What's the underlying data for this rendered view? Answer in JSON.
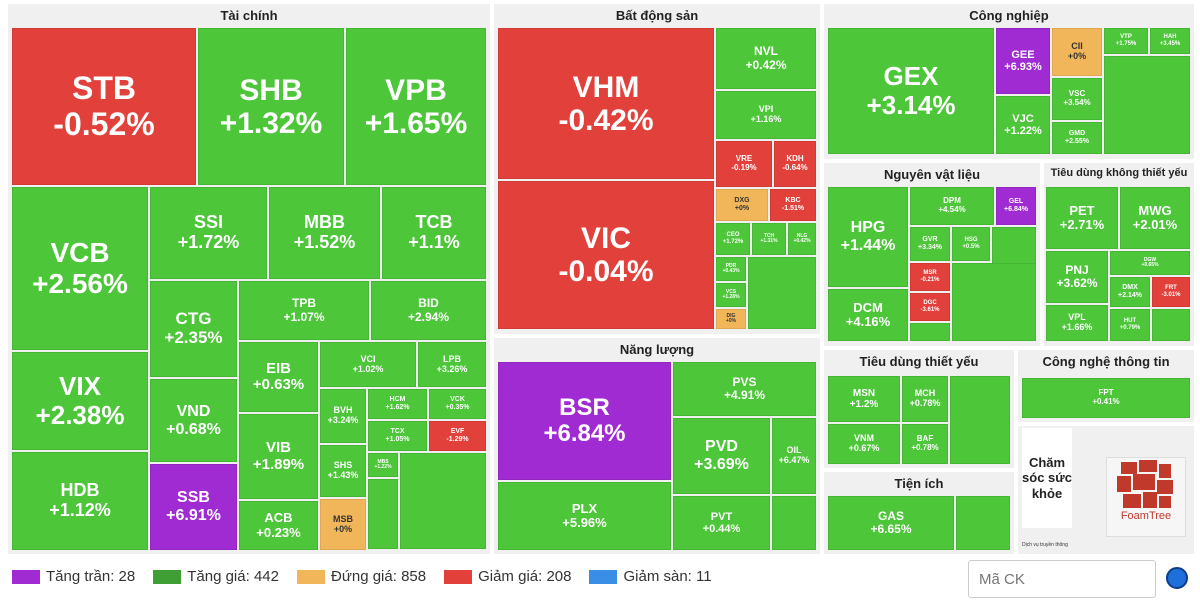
{
  "sectors": {
    "finance": "Tài chính",
    "realestate": "Bất động sản",
    "industry": "Công nghiệp",
    "materials": "Nguyên vật liệu",
    "consumer_disc": "Tiêu dùng không thiết yếu",
    "energy": "Năng lượng",
    "staples": "Tiêu dùng thiết yếu",
    "it": "Công nghệ thông tin",
    "utilities": "Tiện ích",
    "health": "Chăm sóc sức khỏe"
  },
  "tiles": {
    "STB": {
      "s": "STB",
      "v": "-0.52%"
    },
    "SHB": {
      "s": "SHB",
      "v": "+1.32%"
    },
    "VPB": {
      "s": "VPB",
      "v": "+1.65%"
    },
    "VCB": {
      "s": "VCB",
      "v": "+2.56%"
    },
    "SSI": {
      "s": "SSI",
      "v": "+1.72%"
    },
    "MBB": {
      "s": "MBB",
      "v": "+1.52%"
    },
    "TCB": {
      "s": "TCB",
      "v": "+1.1%"
    },
    "CTG": {
      "s": "CTG",
      "v": "+2.35%"
    },
    "TPB": {
      "s": "TPB",
      "v": "+1.07%"
    },
    "BID": {
      "s": "BID",
      "v": "+2.94%"
    },
    "VIX": {
      "s": "VIX",
      "v": "+2.38%"
    },
    "VND": {
      "s": "VND",
      "v": "+0.68%"
    },
    "EIB": {
      "s": "EIB",
      "v": "+0.63%"
    },
    "VCI": {
      "s": "VCI",
      "v": "+1.02%"
    },
    "LPB": {
      "s": "LPB",
      "v": "+3.26%"
    },
    "BVH": {
      "s": "BVH",
      "v": "+3.24%"
    },
    "HCM": {
      "s": "HCM",
      "v": "+1.62%"
    },
    "VCK": {
      "s": "VCK",
      "v": "+0.35%"
    },
    "TCX": {
      "s": "TCX",
      "v": "+1.05%"
    },
    "EVF": {
      "s": "EVF",
      "v": "-1.29%"
    },
    "VIB": {
      "s": "VIB",
      "v": "+1.89%"
    },
    "SHS": {
      "s": "SHS",
      "v": "+1.43%"
    },
    "MBS": {
      "s": "MBS",
      "v": "+1.22%"
    },
    "HDB": {
      "s": "HDB",
      "v": "+1.12%"
    },
    "SSB": {
      "s": "SSB",
      "v": "+6.91%"
    },
    "ACB": {
      "s": "ACB",
      "v": "+0.23%"
    },
    "MSB": {
      "s": "MSB",
      "v": "+0%"
    },
    "VHM": {
      "s": "VHM",
      "v": "-0.42%"
    },
    "VIC": {
      "s": "VIC",
      "v": "-0.04%"
    },
    "NVL": {
      "s": "NVL",
      "v": "+0.42%"
    },
    "VPI": {
      "s": "VPI",
      "v": "+1.16%"
    },
    "VRE": {
      "s": "VRE",
      "v": "-0.19%"
    },
    "KDH": {
      "s": "KDH",
      "v": "-0.64%"
    },
    "DXG": {
      "s": "DXG",
      "v": "+0%"
    },
    "KBC": {
      "s": "KBC",
      "v": "-1.51%"
    },
    "CEO": {
      "s": "CEO",
      "v": "+1.72%"
    },
    "TCH": {
      "s": "TCH",
      "v": "+1.31%"
    },
    "NLG": {
      "s": "NLG",
      "v": "+0.42%"
    },
    "PDR": {
      "s": "PDR",
      "v": "+0.43%"
    },
    "VCS": {
      "s": "VCS",
      "v": "+1.28%"
    },
    "DIG": {
      "s": "DIG",
      "v": "+0%"
    },
    "GEX": {
      "s": "GEX",
      "v": "+3.14%"
    },
    "GEE": {
      "s": "GEE",
      "v": "+6.93%"
    },
    "CII": {
      "s": "CII",
      "v": "+0%"
    },
    "VJC": {
      "s": "VJC",
      "v": "+1.22%"
    },
    "VSC": {
      "s": "VSC",
      "v": "+3.54%"
    },
    "GMD": {
      "s": "GMD",
      "v": "+2.55%"
    },
    "VTP": {
      "s": "VTP",
      "v": "+1.75%"
    },
    "HAH": {
      "s": "HAH",
      "v": "+3.45%"
    },
    "HPG": {
      "s": "HPG",
      "v": "+1.44%"
    },
    "DPM": {
      "s": "DPM",
      "v": "+4.54%"
    },
    "GEL": {
      "s": "GEL",
      "v": "+6.84%"
    },
    "GVR": {
      "s": "GVR",
      "v": "+3.34%"
    },
    "HSG": {
      "s": "HSG",
      "v": "+0.5%"
    },
    "MSR": {
      "s": "MSR",
      "v": "-0.21%"
    },
    "DCM": {
      "s": "DCM",
      "v": "+4.16%"
    },
    "DGC": {
      "s": "DGC",
      "v": "-3.61%"
    },
    "PET": {
      "s": "PET",
      "v": "+2.71%"
    },
    "MWG": {
      "s": "MWG",
      "v": "+2.01%"
    },
    "PNJ": {
      "s": "PNJ",
      "v": "+3.62%"
    },
    "DGW": {
      "s": "DGW",
      "v": "+0.65%"
    },
    "DMX": {
      "s": "DMX",
      "v": "+2.14%"
    },
    "FRT": {
      "s": "FRT",
      "v": "-3.01%"
    },
    "VPL": {
      "s": "VPL",
      "v": "+1.66%"
    },
    "HUT": {
      "s": "HUT",
      "v": "+0.79%"
    },
    "BSR": {
      "s": "BSR",
      "v": "+6.84%"
    },
    "PVS": {
      "s": "PVS",
      "v": "+4.91%"
    },
    "PVD": {
      "s": "PVD",
      "v": "+3.69%"
    },
    "OIL": {
      "s": "OIL",
      "v": "+6.47%"
    },
    "PLX": {
      "s": "PLX",
      "v": "+5.96%"
    },
    "PVT": {
      "s": "PVT",
      "v": "+0.44%"
    },
    "MSN": {
      "s": "MSN",
      "v": "+1.2%"
    },
    "MCH": {
      "s": "MCH",
      "v": "+0.78%"
    },
    "VNM": {
      "s": "VNM",
      "v": "+0.67%"
    },
    "BAF": {
      "s": "BAF",
      "v": "+0.78%"
    },
    "FPT": {
      "s": "FPT",
      "v": "+0.41%"
    },
    "GAS": {
      "s": "GAS",
      "v": "+6.65%"
    }
  },
  "legend": {
    "ceiling": "Tăng trần: 28",
    "up": "Tăng giá: 442",
    "flat": "Đứng giá: 858",
    "down": "Giảm giá: 208",
    "floor": "Giảm sàn: 11"
  },
  "colors": {
    "ceiling": "#a02bd2",
    "up": "#3f9e34",
    "flat": "#f2b65a",
    "down": "#e2403b",
    "floor": "#3a8ee6"
  },
  "search": {
    "placeholder": "Mã CK"
  },
  "brand": {
    "foamtree": "FoamTree",
    "credit": "Dịch vụ truyền thông"
  }
}
